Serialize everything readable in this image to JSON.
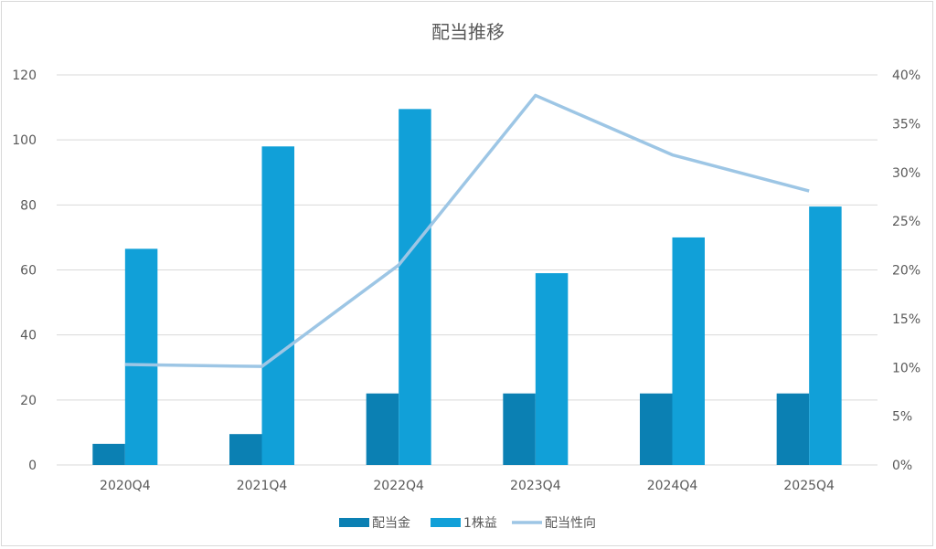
{
  "chart_data": {
    "type": "bar",
    "title": "配当推移",
    "categories": [
      "2020Q4",
      "2021Q4",
      "2022Q4",
      "2023Q4",
      "2024Q4",
      "2025Q4"
    ],
    "series": [
      {
        "name": "配当金",
        "type": "bar",
        "axis": "left",
        "color": "#0b80b3",
        "values": [
          6.5,
          9.5,
          22,
          22,
          22,
          22
        ]
      },
      {
        "name": "1株益",
        "type": "bar",
        "axis": "left",
        "color": "#11a0d8",
        "values": [
          66.5,
          98,
          109.5,
          59,
          70,
          79.5
        ]
      },
      {
        "name": "配当性向",
        "type": "line",
        "axis": "right",
        "color": "#9dc6e5",
        "values": [
          0.103,
          0.101,
          0.205,
          0.379,
          0.318,
          0.281
        ]
      }
    ],
    "y_left": {
      "min": 0,
      "max": 120,
      "ticks": [
        "0",
        "20",
        "40",
        "60",
        "80",
        "100",
        "120"
      ]
    },
    "y_right": {
      "min": 0,
      "max": 0.4,
      "ticks": [
        "0%",
        "5%",
        "10%",
        "15%",
        "20%",
        "25%",
        "30%",
        "35%",
        "40%"
      ]
    },
    "grid": true,
    "legend_position": "bottom",
    "gridline_color": "#d9d9d9"
  }
}
